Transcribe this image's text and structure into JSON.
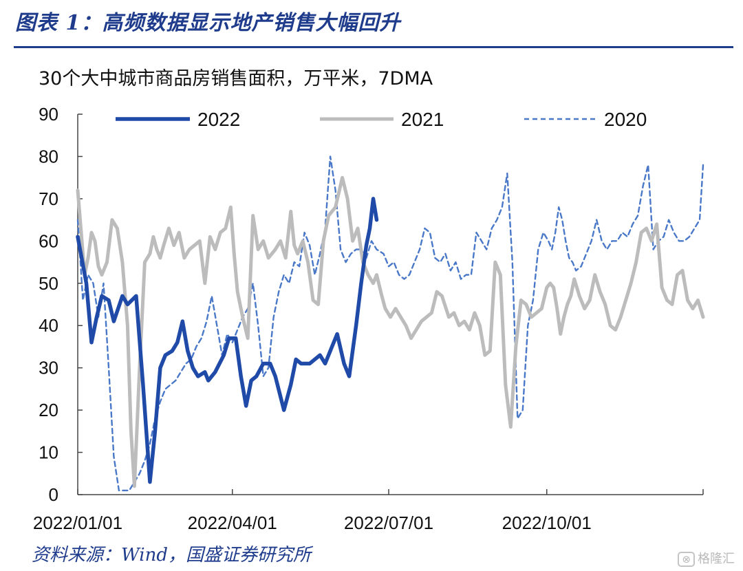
{
  "figure": {
    "title": "图表 1：高频数据显示地产销售大幅回升",
    "subtitle": "30个大中城市商品房销售面积，万平米，7DMA",
    "source": "资料来源：Wind，国盛证券研究所",
    "watermark": "格隆汇"
  },
  "chart_data": {
    "type": "line",
    "title": "30个大中城市商品房销售面积，万平米，7DMA",
    "xlabel": "",
    "ylabel": "",
    "ylim": [
      0,
      90
    ],
    "yticks": [
      "0",
      "10",
      "20",
      "30",
      "40",
      "50",
      "60",
      "70",
      "80",
      "90"
    ],
    "x_ticks": [
      "2022/01/01",
      "2022/04/01",
      "2022/07/01",
      "2022/10/01"
    ],
    "x_tick_days": [
      0,
      90,
      181,
      273
    ],
    "x_range_days": [
      0,
      364
    ],
    "legend_position": "top",
    "grid": false,
    "series": [
      {
        "name": "2022",
        "color": "#1f4aa8",
        "style": "solid-thick",
        "x": [
          0,
          5,
          8,
          11,
          14,
          18,
          21,
          26,
          29,
          34,
          38,
          42,
          45,
          48,
          51,
          55,
          58,
          61,
          64,
          67,
          70,
          74,
          76,
          80,
          85,
          88,
          92,
          95,
          98,
          101,
          104,
          108,
          112,
          115,
          120,
          124,
          127,
          130,
          135,
          138,
          141,
          144,
          148,
          151,
          155,
          158,
          162,
          165,
          168,
          170,
          172,
          174
        ],
        "y": [
          61,
          50,
          36,
          42,
          47,
          46,
          41,
          47,
          45,
          47,
          26,
          3,
          15,
          30,
          33,
          34,
          36,
          41,
          34,
          30,
          28,
          29,
          27,
          29,
          33,
          37,
          37,
          28,
          21,
          27,
          28,
          31,
          31,
          28,
          20,
          26,
          32,
          31,
          31,
          32,
          33,
          31,
          35,
          38,
          31,
          28,
          40,
          50,
          59,
          63,
          70,
          65
        ]
      },
      {
        "name": "2021",
        "color": "#bcbcbc",
        "style": "solid-thick",
        "x": [
          0,
          4,
          6,
          8,
          10,
          12,
          14,
          17,
          20,
          23,
          26,
          29,
          31,
          33,
          36,
          39,
          42,
          44,
          46,
          48,
          50,
          53,
          56,
          59,
          62,
          65,
          68,
          71,
          74,
          77,
          80,
          83,
          86,
          89,
          91,
          93,
          96,
          99,
          102,
          105,
          108,
          111,
          115,
          118,
          121,
          124,
          126,
          128,
          131,
          134,
          137,
          140,
          143,
          146,
          150,
          154,
          157,
          160,
          163,
          166,
          169,
          172,
          174,
          177,
          179,
          182,
          185,
          188,
          191,
          194,
          197,
          200,
          203,
          206,
          209,
          212,
          216,
          219,
          222,
          225,
          228,
          231,
          234,
          237,
          240,
          243,
          246,
          249,
          252,
          255,
          258,
          261,
          264,
          267,
          270,
          273,
          275,
          277,
          279,
          281,
          283,
          285,
          287,
          289,
          292,
          295,
          298,
          301,
          304,
          307,
          310,
          313,
          316,
          319,
          322,
          325,
          328,
          331,
          334,
          337,
          340,
          343,
          346,
          349,
          352,
          355,
          358,
          361,
          364
        ],
        "y": [
          72,
          52,
          56,
          62,
          60,
          54,
          52,
          55,
          65,
          63,
          55,
          40,
          15,
          2,
          30,
          55,
          57,
          61,
          58,
          56,
          59,
          63,
          59,
          62,
          56,
          58,
          59,
          60,
          50,
          61,
          58,
          62,
          63,
          68,
          57,
          48,
          42,
          37,
          66,
          58,
          60,
          56,
          58,
          60,
          56,
          67,
          59,
          57,
          60,
          55,
          46,
          45,
          60,
          66,
          68,
          75,
          70,
          60,
          63,
          55,
          52,
          50,
          52,
          47,
          44,
          42,
          44,
          42,
          40,
          37,
          39,
          41,
          42,
          43,
          48,
          47,
          42,
          43,
          40,
          41,
          39,
          43,
          40,
          33,
          34,
          55,
          52,
          26,
          16,
          35,
          46,
          45,
          42,
          43,
          44,
          49,
          50,
          49,
          44,
          38,
          42,
          45,
          47,
          51,
          47,
          44,
          46,
          52,
          48,
          45,
          40,
          39,
          42,
          46,
          50,
          55,
          62,
          63,
          60,
          64,
          49,
          46,
          45,
          52,
          53,
          46,
          44,
          46,
          42
        ],
        "note": "x and y in days since 2022/01/01 / 万平米"
      },
      {
        "name": "2020",
        "color": "#4a78c8",
        "style": "dashed",
        "x": [
          0,
          3,
          6,
          9,
          12,
          15,
          18,
          21,
          24,
          27,
          30,
          33,
          36,
          39,
          42,
          45,
          48,
          51,
          54,
          57,
          60,
          63,
          66,
          69,
          72,
          75,
          78,
          81,
          84,
          87,
          90,
          93,
          96,
          99,
          102,
          105,
          108,
          111,
          114,
          117,
          120,
          123,
          126,
          129,
          132,
          135,
          138,
          141,
          144,
          147,
          150,
          153,
          156,
          159,
          162,
          165,
          168,
          171,
          174,
          178,
          181,
          184,
          187,
          190,
          193,
          196,
          199,
          202,
          205,
          208,
          211,
          214,
          217,
          220,
          223,
          226,
          229,
          232,
          235,
          238,
          241,
          244,
          247,
          250,
          253,
          256,
          259,
          262,
          265,
          268,
          271,
          274,
          276,
          278,
          280,
          282,
          284,
          286,
          288,
          290,
          293,
          296,
          299,
          302,
          305,
          308,
          311,
          314,
          317,
          320,
          323,
          326,
          329,
          332,
          335,
          338,
          341,
          344,
          347,
          350,
          353,
          356,
          359,
          362,
          364
        ],
        "y": [
          65,
          46,
          52,
          50,
          42,
          50,
          30,
          9,
          1,
          1,
          1,
          3,
          5,
          8,
          12,
          18,
          22,
          25,
          26,
          27,
          29,
          31,
          32,
          35,
          37,
          41,
          47,
          40,
          33,
          38,
          36,
          39,
          42,
          44,
          50,
          40,
          28,
          30,
          42,
          48,
          52,
          50,
          55,
          54,
          62,
          59,
          52,
          57,
          63,
          80,
          72,
          58,
          55,
          57,
          58,
          58,
          56,
          60,
          58,
          57,
          54,
          55,
          52,
          51,
          52,
          55,
          58,
          63,
          62,
          56,
          55,
          57,
          53,
          55,
          51,
          52,
          52,
          62,
          60,
          58,
          63,
          65,
          68,
          76,
          55,
          18,
          20,
          40,
          46,
          58,
          62,
          60,
          58,
          62,
          68,
          65,
          60,
          56,
          55,
          53,
          54,
          57,
          60,
          65,
          60,
          58,
          60,
          60,
          62,
          61,
          64,
          66,
          73,
          78,
          58,
          60,
          61,
          65,
          62,
          60,
          60,
          61,
          63,
          65,
          78
        ]
      }
    ]
  }
}
